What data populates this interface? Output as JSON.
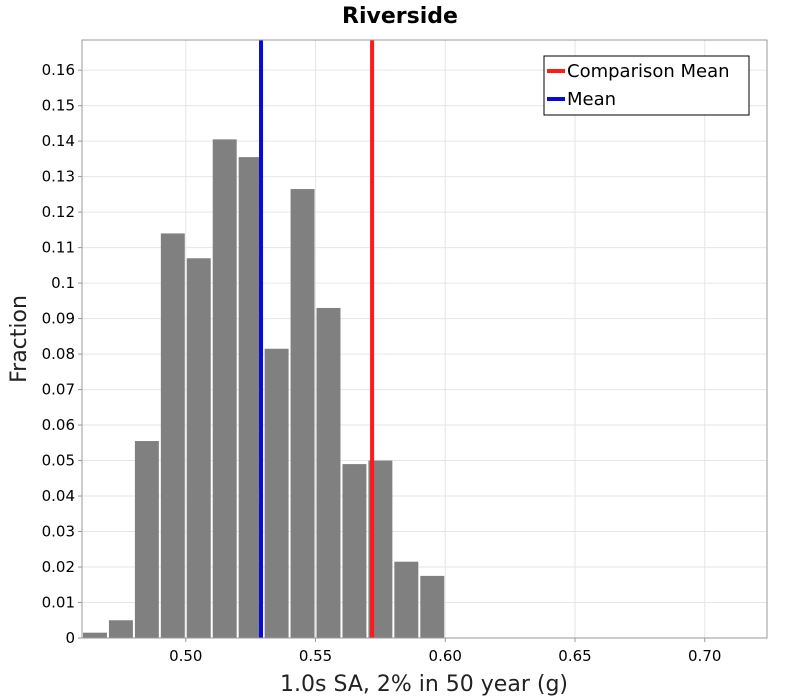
{
  "chart_data": {
    "type": "bar",
    "title": "Riverside",
    "xlabel": "1.0s SA, 2% in 50 year (g)",
    "ylabel": "Fraction",
    "xlim": [
      0.46,
      0.724
    ],
    "ylim": [
      0,
      0.1685
    ],
    "xticks": [
      0.5,
      0.55,
      0.6,
      0.65,
      0.7
    ],
    "xtick_labels": [
      "0.50",
      "0.55",
      "0.60",
      "0.65",
      "0.70"
    ],
    "yticks": [
      0,
      0.01,
      0.02,
      0.03,
      0.04,
      0.05,
      0.06,
      0.07,
      0.08,
      0.09,
      0.1,
      0.11,
      0.12,
      0.13,
      0.14,
      0.15,
      0.16
    ],
    "ytick_labels": [
      "0",
      "0.01",
      "0.02",
      "0.03",
      "0.04",
      "0.05",
      "0.06",
      "0.07",
      "0.08",
      "0.09",
      "0.1",
      "0.11",
      "0.12",
      "0.13",
      "0.14",
      "0.15",
      "0.16"
    ],
    "bin_width": 0.01,
    "bins": [
      {
        "x0": 0.46,
        "x1": 0.47,
        "value": 0.0015
      },
      {
        "x0": 0.47,
        "x1": 0.48,
        "value": 0.005
      },
      {
        "x0": 0.48,
        "x1": 0.49,
        "value": 0.0555
      },
      {
        "x0": 0.49,
        "x1": 0.5,
        "value": 0.114
      },
      {
        "x0": 0.5,
        "x1": 0.51,
        "value": 0.107
      },
      {
        "x0": 0.51,
        "x1": 0.52,
        "value": 0.1405
      },
      {
        "x0": 0.52,
        "x1": 0.53,
        "value": 0.1355
      },
      {
        "x0": 0.53,
        "x1": 0.54,
        "value": 0.0815
      },
      {
        "x0": 0.54,
        "x1": 0.55,
        "value": 0.1265
      },
      {
        "x0": 0.55,
        "x1": 0.56,
        "value": 0.093
      },
      {
        "x0": 0.56,
        "x1": 0.57,
        "value": 0.049
      },
      {
        "x0": 0.57,
        "x1": 0.58,
        "value": 0.05
      },
      {
        "x0": 0.58,
        "x1": 0.59,
        "value": 0.0215
      },
      {
        "x0": 0.59,
        "x1": 0.6,
        "value": 0.0175
      }
    ],
    "reference_lines": [
      {
        "name": "Comparison Mean",
        "x": 0.5718,
        "color": "#ff1a1a"
      },
      {
        "name": "Mean",
        "x": 0.529,
        "color": "#0a0ad6"
      }
    ],
    "legend": {
      "position": "top-right",
      "entries": [
        {
          "label": "Comparison Mean",
          "color": "#ff1a1a"
        },
        {
          "label": "Mean",
          "color": "#0a0ad6"
        }
      ]
    },
    "bar_color": "#808080",
    "grid": true
  }
}
